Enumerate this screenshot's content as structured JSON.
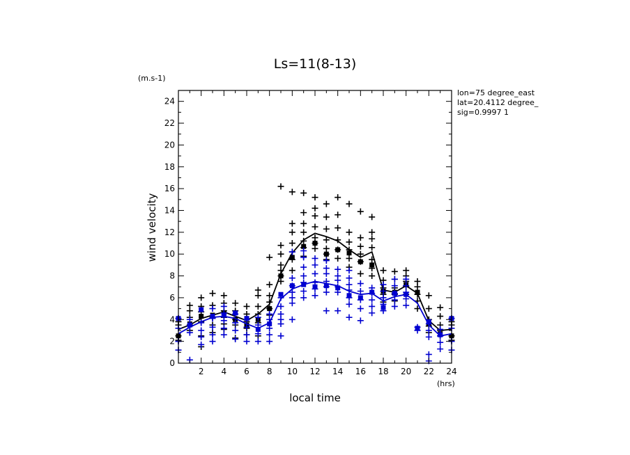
{
  "chart_data": {
    "type": "scatter",
    "title": "Ls=11(8-13)",
    "xlabel": "local time",
    "ylabel": "wind velocity",
    "x_unit": "(hrs)",
    "y_unit": "(m.s-1)",
    "xlim": [
      0,
      24
    ],
    "ylim": [
      0,
      25
    ],
    "xticks": [
      "2",
      "4",
      "6",
      "8",
      "10",
      "12",
      "14",
      "16",
      "18",
      "20",
      "22",
      "24"
    ],
    "yticks": [
      "0",
      "2",
      "4",
      "6",
      "8",
      "10",
      "12",
      "14",
      "16",
      "18",
      "20",
      "22",
      "24"
    ],
    "grid": false,
    "legend": "none",
    "annotations": [
      "lon=75 degree_east",
      "lat=20.4112 degree_",
      "sig=0.9997 1"
    ],
    "colors": {
      "series_1": "#000000",
      "series_2": "#0000d0"
    },
    "series": [
      {
        "color": "#000000",
        "mean_line": {
          "x": [
            0,
            1,
            2,
            3,
            4,
            5,
            6,
            7,
            8,
            9,
            10,
            11,
            12,
            13,
            14,
            15,
            16,
            17,
            18,
            19,
            20,
            21,
            22,
            23,
            24
          ],
          "y": [
            3.1,
            3.5,
            4.1,
            4.4,
            4.7,
            4.3,
            3.9,
            4.5,
            5.4,
            8.2,
            10.1,
            11.3,
            11.9,
            11.6,
            11.2,
            10.4,
            9.7,
            10.2,
            6.7,
            6.5,
            7.1,
            6.4,
            3.9,
            3.0,
            3.1
          ],
          "markers": [
            2.5,
            3.6,
            4.3,
            4.4,
            4.6,
            4.0,
            3.5,
            4.0,
            5.0,
            8.0,
            9.7,
            10.7,
            11.0,
            10.0,
            10.4,
            10.1,
            9.3,
            9.0,
            6.6,
            6.5,
            7.2,
            6.5,
            3.6,
            2.7,
            2.5
          ]
        },
        "points": [
          [
            0,
            2.5
          ],
          [
            0,
            3.5
          ],
          [
            0,
            4.1
          ],
          [
            0,
            3.8
          ],
          [
            0,
            2.1
          ],
          [
            1,
            3.5
          ],
          [
            1,
            4.2
          ],
          [
            1,
            5.3
          ],
          [
            1,
            3.0
          ],
          [
            1,
            4.8
          ],
          [
            2,
            3.8
          ],
          [
            2,
            4.7
          ],
          [
            2,
            6.0
          ],
          [
            2,
            5.2
          ],
          [
            2,
            2.5
          ],
          [
            2,
            1.5
          ],
          [
            3,
            3.5
          ],
          [
            3,
            4.2
          ],
          [
            3,
            5.3
          ],
          [
            3,
            6.4
          ],
          [
            3,
            2.8
          ],
          [
            4,
            4.2
          ],
          [
            4,
            4.8
          ],
          [
            4,
            5.5
          ],
          [
            4,
            6.2
          ],
          [
            4,
            3.6
          ],
          [
            4,
            3.1
          ],
          [
            5,
            3.5
          ],
          [
            5,
            4.0
          ],
          [
            5,
            4.8
          ],
          [
            5,
            5.5
          ],
          [
            5,
            2.3
          ],
          [
            6,
            3.2
          ],
          [
            6,
            3.8
          ],
          [
            6,
            4.5
          ],
          [
            6,
            5.2
          ],
          [
            6,
            2.6
          ],
          [
            7,
            3.7
          ],
          [
            7,
            4.5
          ],
          [
            7,
            5.2
          ],
          [
            7,
            6.2
          ],
          [
            7,
            6.7
          ],
          [
            7,
            2.5
          ],
          [
            8,
            4.4
          ],
          [
            8,
            5.0
          ],
          [
            8,
            5.6
          ],
          [
            8,
            6.2
          ],
          [
            8,
            7.2
          ],
          [
            8,
            9.7
          ],
          [
            9,
            7.5
          ],
          [
            9,
            8.0
          ],
          [
            9,
            8.5
          ],
          [
            9,
            9.0
          ],
          [
            9,
            10.0
          ],
          [
            9,
            10.8
          ],
          [
            9,
            16.2
          ],
          [
            10,
            8.5
          ],
          [
            10,
            9.5
          ],
          [
            10,
            10.2
          ],
          [
            10,
            11.0
          ],
          [
            10,
            12.0
          ],
          [
            10,
            12.8
          ],
          [
            10,
            15.7
          ],
          [
            11,
            9.8
          ],
          [
            11,
            10.6
          ],
          [
            11,
            11.2
          ],
          [
            11,
            12.0
          ],
          [
            11,
            12.8
          ],
          [
            11,
            13.8
          ],
          [
            11,
            15.6
          ],
          [
            12,
            10.5
          ],
          [
            12,
            11.0
          ],
          [
            12,
            11.5
          ],
          [
            12,
            12.5
          ],
          [
            12,
            13.5
          ],
          [
            12,
            14.2
          ],
          [
            12,
            15.2
          ],
          [
            13,
            9.5
          ],
          [
            13,
            10.0
          ],
          [
            13,
            10.5
          ],
          [
            13,
            11.3
          ],
          [
            13,
            12.3
          ],
          [
            13,
            13.4
          ],
          [
            13,
            14.6
          ],
          [
            14,
            9.6
          ],
          [
            14,
            10.4
          ],
          [
            14,
            11.3
          ],
          [
            14,
            12.4
          ],
          [
            14,
            13.6
          ],
          [
            14,
            15.2
          ],
          [
            15,
            8.8
          ],
          [
            15,
            9.6
          ],
          [
            15,
            10.4
          ],
          [
            15,
            11.1
          ],
          [
            15,
            12.0
          ],
          [
            15,
            14.6
          ],
          [
            16,
            8.2
          ],
          [
            16,
            9.3
          ],
          [
            16,
            10.0
          ],
          [
            16,
            10.7
          ],
          [
            16,
            11.5
          ],
          [
            16,
            13.9
          ],
          [
            17,
            8.0
          ],
          [
            17,
            8.7
          ],
          [
            17,
            9.5
          ],
          [
            17,
            10.6
          ],
          [
            17,
            11.4
          ],
          [
            17,
            12.0
          ],
          [
            17,
            13.4
          ],
          [
            18,
            5.6
          ],
          [
            18,
            6.3
          ],
          [
            18,
            6.9
          ],
          [
            18,
            7.6
          ],
          [
            18,
            8.5
          ],
          [
            19,
            5.7
          ],
          [
            19,
            6.3
          ],
          [
            19,
            6.9
          ],
          [
            19,
            7.7
          ],
          [
            19,
            8.4
          ],
          [
            20,
            6.3
          ],
          [
            20,
            7.0
          ],
          [
            20,
            7.5
          ],
          [
            20,
            8.0
          ],
          [
            20,
            8.5
          ],
          [
            21,
            5.0
          ],
          [
            21,
            5.7
          ],
          [
            21,
            6.3
          ],
          [
            21,
            7.0
          ],
          [
            21,
            7.5
          ],
          [
            22,
            2.8
          ],
          [
            22,
            3.4
          ],
          [
            22,
            4.0
          ],
          [
            22,
            5.0
          ],
          [
            22,
            6.2
          ],
          [
            23,
            2.5
          ],
          [
            23,
            3.0
          ],
          [
            23,
            3.5
          ],
          [
            23,
            4.3
          ],
          [
            23,
            5.1
          ],
          [
            24,
            2.5
          ],
          [
            24,
            3.5
          ],
          [
            24,
            4.1
          ],
          [
            24,
            3.8
          ],
          [
            24,
            2.1
          ]
        ]
      },
      {
        "color": "#0000d0",
        "mean_line": {
          "x": [
            0,
            1,
            2,
            3,
            4,
            5,
            6,
            7,
            8,
            9,
            10,
            11,
            12,
            13,
            14,
            15,
            16,
            17,
            18,
            19,
            20,
            21,
            22,
            23,
            24
          ],
          "y": [
            2.7,
            3.3,
            3.8,
            4.2,
            4.3,
            4.1,
            3.6,
            3.2,
            3.7,
            5.9,
            6.8,
            7.2,
            7.5,
            7.3,
            7.1,
            6.6,
            6.3,
            6.4,
            5.7,
            6.1,
            6.3,
            5.5,
            3.5,
            2.5,
            2.7
          ],
          "markers": [
            4.1,
            3.5,
            4.9,
            4.3,
            4.4,
            4.6,
            4.1,
            3.1,
            3.6,
            6.3,
            7.1,
            7.2,
            7.0,
            7.1,
            6.9,
            6.2,
            6.0,
            6.5,
            5.1,
            6.4,
            6.3,
            3.2,
            3.8,
            2.6,
            4.1
          ]
        },
        "points": [
          [
            0,
            1.2
          ],
          [
            0,
            2.0
          ],
          [
            0,
            3.2
          ],
          [
            0,
            4.1
          ],
          [
            1,
            0.3
          ],
          [
            1,
            2.8
          ],
          [
            1,
            3.4
          ],
          [
            1,
            4.0
          ],
          [
            2,
            1.7
          ],
          [
            2,
            2.4
          ],
          [
            2,
            3.0
          ],
          [
            2,
            3.7
          ],
          [
            3,
            2.0
          ],
          [
            3,
            2.6
          ],
          [
            3,
            3.3
          ],
          [
            3,
            4.1
          ],
          [
            3,
            5.0
          ],
          [
            4,
            2.6
          ],
          [
            4,
            3.2
          ],
          [
            4,
            3.9
          ],
          [
            4,
            4.6
          ],
          [
            4,
            5.2
          ],
          [
            5,
            2.2
          ],
          [
            5,
            3.0
          ],
          [
            5,
            3.7
          ],
          [
            5,
            4.5
          ],
          [
            6,
            2.0
          ],
          [
            6,
            2.6
          ],
          [
            6,
            3.3
          ],
          [
            6,
            4.0
          ],
          [
            7,
            2.0
          ],
          [
            7,
            2.7
          ],
          [
            7,
            3.5
          ],
          [
            7,
            4.2
          ],
          [
            8,
            2.0
          ],
          [
            8,
            2.6
          ],
          [
            8,
            3.2
          ],
          [
            8,
            4.0
          ],
          [
            8,
            4.5
          ],
          [
            9,
            2.5
          ],
          [
            9,
            3.6
          ],
          [
            9,
            4.0
          ],
          [
            9,
            4.5
          ],
          [
            9,
            5.2
          ],
          [
            9,
            6.0
          ],
          [
            10,
            4.0
          ],
          [
            10,
            5.5
          ],
          [
            10,
            6.0
          ],
          [
            10,
            6.5
          ],
          [
            10,
            7.1
          ],
          [
            10,
            7.8
          ],
          [
            10,
            10.2
          ],
          [
            11,
            6.0
          ],
          [
            11,
            6.6
          ],
          [
            11,
            7.4
          ],
          [
            11,
            8.0
          ],
          [
            11,
            8.8
          ],
          [
            11,
            9.7
          ],
          [
            11,
            10.3
          ],
          [
            12,
            6.2
          ],
          [
            12,
            6.8
          ],
          [
            12,
            7.4
          ],
          [
            12,
            8.2
          ],
          [
            12,
            9.0
          ],
          [
            12,
            9.6
          ],
          [
            13,
            4.8
          ],
          [
            13,
            6.5
          ],
          [
            13,
            7.0
          ],
          [
            13,
            7.5
          ],
          [
            13,
            8.2
          ],
          [
            13,
            8.7
          ],
          [
            13,
            9.4
          ],
          [
            14,
            4.8
          ],
          [
            14,
            6.5
          ],
          [
            14,
            7.0
          ],
          [
            14,
            7.6
          ],
          [
            14,
            8.0
          ],
          [
            14,
            8.6
          ],
          [
            15,
            4.2
          ],
          [
            15,
            5.4
          ],
          [
            15,
            6.0
          ],
          [
            15,
            6.7
          ],
          [
            15,
            7.2
          ],
          [
            15,
            7.8
          ],
          [
            15,
            8.5
          ],
          [
            16,
            3.9
          ],
          [
            16,
            5.0
          ],
          [
            16,
            5.8
          ],
          [
            16,
            6.6
          ],
          [
            16,
            7.3
          ],
          [
            17,
            4.6
          ],
          [
            17,
            5.2
          ],
          [
            17,
            5.8
          ],
          [
            17,
            6.4
          ],
          [
            17,
            6.9
          ],
          [
            18,
            4.8
          ],
          [
            18,
            5.4
          ],
          [
            18,
            6.0
          ],
          [
            18,
            6.6
          ],
          [
            18,
            7.2
          ],
          [
            19,
            5.2
          ],
          [
            19,
            5.8
          ],
          [
            19,
            6.4
          ],
          [
            19,
            7.1
          ],
          [
            19,
            7.7
          ],
          [
            20,
            5.3
          ],
          [
            20,
            5.9
          ],
          [
            20,
            6.5
          ],
          [
            20,
            7.1
          ],
          [
            20,
            7.7
          ],
          [
            21,
            3.0
          ],
          [
            21,
            3.3
          ],
          [
            22,
            0.2
          ],
          [
            22,
            0.8
          ],
          [
            22,
            2.4
          ],
          [
            22,
            3.0
          ],
          [
            22,
            3.6
          ],
          [
            23,
            1.3
          ],
          [
            23,
            1.9
          ],
          [
            23,
            2.5
          ],
          [
            23,
            3.1
          ],
          [
            24,
            1.2
          ],
          [
            24,
            2.0
          ],
          [
            24,
            3.2
          ],
          [
            24,
            4.1
          ]
        ]
      }
    ]
  }
}
